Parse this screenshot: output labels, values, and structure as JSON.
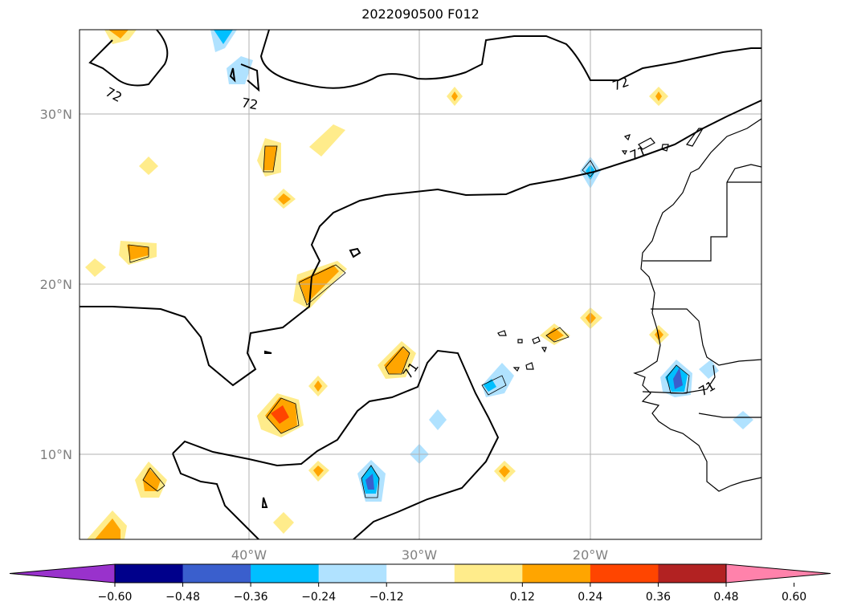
{
  "title": "2022090500 F012",
  "map": {
    "extent": {
      "lon_min": -60,
      "lon_max": -10,
      "lat_min": 5,
      "lat_max": 35
    },
    "lat_ticks": [
      "30°N",
      "20°N",
      "10°N"
    ],
    "lon_ticks": [
      "40°W",
      "30°W",
      "20°W"
    ],
    "contour_labels": [
      "72",
      "72",
      "72",
      "71",
      "71",
      "71"
    ]
  },
  "colorbar": {
    "ticks": [
      "−0.60",
      "−0.48",
      "−0.36",
      "−0.24",
      "−0.12",
      "0.12",
      "0.24",
      "0.36",
      "0.48",
      "0.60"
    ],
    "colors": [
      "#9932cc",
      "#00008b",
      "#3a5fcd",
      "#00bfff",
      "#b0e2ff",
      "#ffffff",
      "#ffec8b",
      "#ffa500",
      "#ff4500",
      "#b22222",
      "#ff82ab"
    ]
  }
}
